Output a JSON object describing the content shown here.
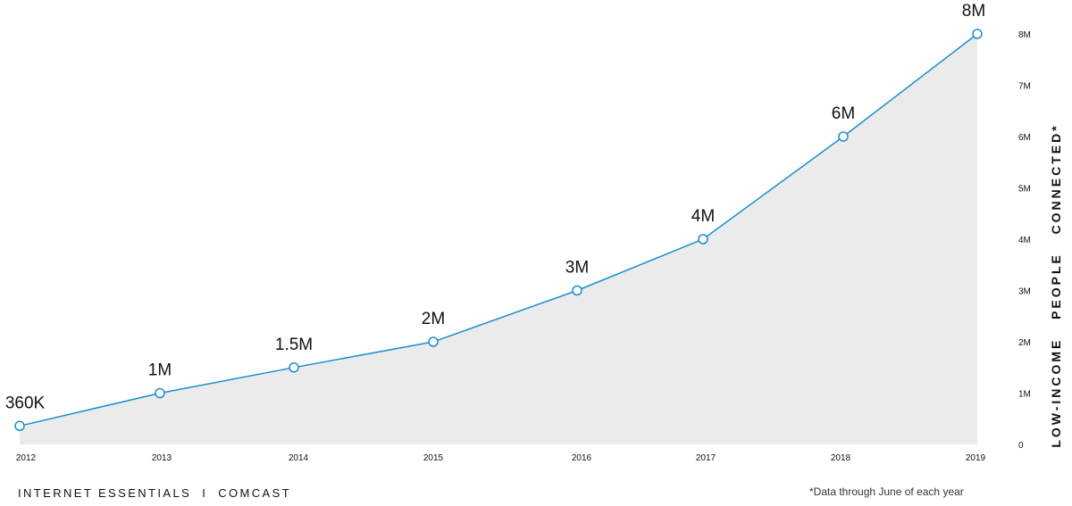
{
  "colors": {
    "line": "#1a8fd0",
    "area": "#ebebeb",
    "marker_fill": "#ffffff",
    "text": "#111111"
  },
  "chart_data": {
    "type": "area",
    "title": "",
    "xlabel": "",
    "ylabel": "LOW-INCOME   PEOPLE   CONNECTED*",
    "x": [
      "2012",
      "2013",
      "2014",
      "2015",
      "2016",
      "2017",
      "2018",
      "2019"
    ],
    "series": [
      {
        "values": [
          0.36,
          1.0,
          1.5,
          2.0,
          3.0,
          4.0,
          6.0,
          8.0
        ],
        "point_labels": [
          "360K",
          "1M",
          "1.5M",
          "2M",
          "3M",
          "4M",
          "6M",
          "8M"
        ]
      }
    ],
    "y_ticks": [
      {
        "value": 0,
        "label": "0"
      },
      {
        "value": 1,
        "label": "1M"
      },
      {
        "value": 2,
        "label": "2M"
      },
      {
        "value": 3,
        "label": "3M"
      },
      {
        "value": 4,
        "label": "4M"
      },
      {
        "value": 5,
        "label": "5M"
      },
      {
        "value": 6,
        "label": "6M"
      },
      {
        "value": 7,
        "label": "7M"
      },
      {
        "value": 8,
        "label": "8M"
      }
    ],
    "ylim": [
      0,
      8
    ],
    "y_axis_side": "right",
    "grid": false,
    "legend": "none",
    "markers": "hollow-circle"
  },
  "footer": {
    "brand": "INTERNET ESSENTIALS  I  COMCAST",
    "note": "*Data through June of each year"
  }
}
